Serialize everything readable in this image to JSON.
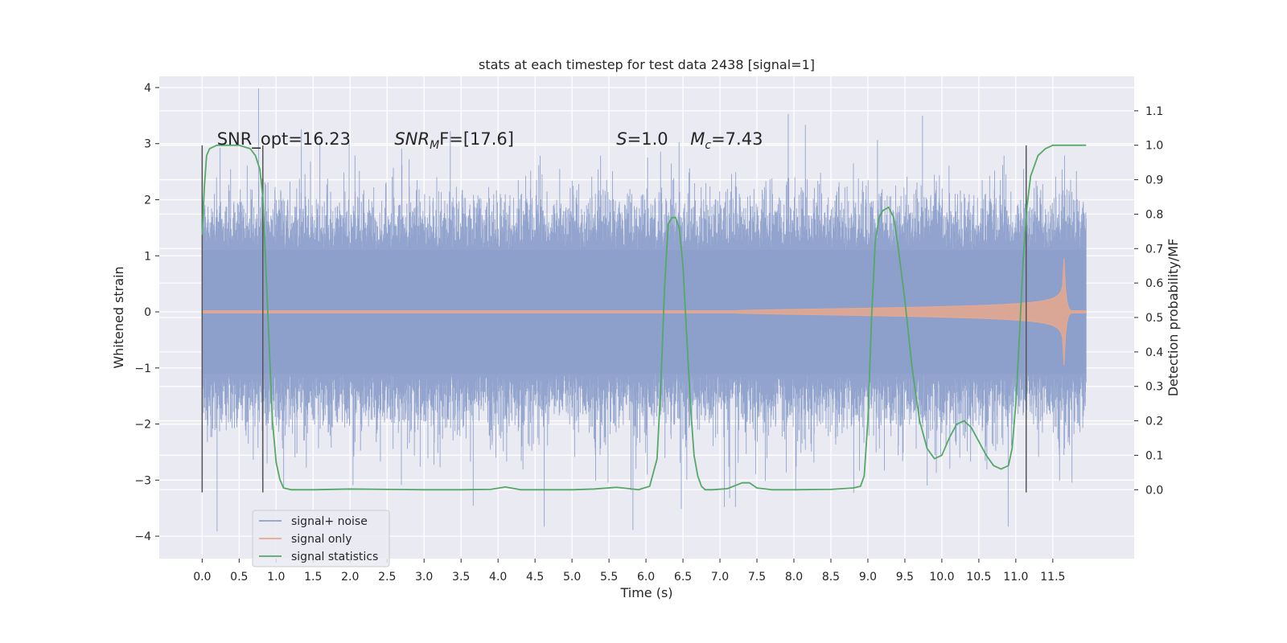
{
  "chart_data": {
    "type": "line",
    "title": "stats at each timestep for test data 2438 [signal=1]",
    "xlabel": "Time (s)",
    "ylabel_left": "Whitened strain",
    "ylabel_right": "Detection probability/MF",
    "xlim": [
      -0.58,
      12.6
    ],
    "ylim_left": [
      -4.4,
      4.2
    ],
    "ylim_right": [
      -0.2,
      1.2
    ],
    "x_ticks": [
      "0.0",
      "0.5",
      "1.0",
      "1.5",
      "2.0",
      "2.5",
      "3.0",
      "3.5",
      "4.0",
      "4.5",
      "5.0",
      "5.5",
      "6.0",
      "6.5",
      "7.0",
      "7.5",
      "8.0",
      "8.5",
      "9.0",
      "9.5",
      "10.0",
      "10.5",
      "11.0",
      "11.5"
    ],
    "y_ticks_left": [
      "4",
      "3",
      "2",
      "1",
      "0",
      "−1",
      "−2",
      "−3",
      "−4"
    ],
    "y_ticks_right": [
      "1.1",
      "1.0",
      "0.9",
      "0.8",
      "0.7",
      "0.6",
      "0.5",
      "0.4",
      "0.3",
      "0.2",
      "0.1",
      "0.0"
    ],
    "grid": true,
    "legend_position": "lower-left",
    "annotations": {
      "snr_opt": "SNR_opt=16.23",
      "snr_mf_base": "SNR",
      "snr_mf_sub": "M",
      "snr_mf_tail": "F=[17.6]",
      "s_label": "S",
      "s_value": "=1.0",
      "mc_base": "M",
      "mc_sub": "c",
      "mc_value": "=7.43"
    },
    "vertical_lines_x": [
      0.0,
      0.82,
      11.14
    ],
    "series": [
      {
        "name": "signal+ noise",
        "color": "#8da0cb",
        "duration": 11.95
      },
      {
        "name": "signal only",
        "color": "#e8a88e",
        "chirp_start": 7.2,
        "chirp_peak": 11.64,
        "peak_amp": 1.5
      },
      {
        "name": "signal statistics",
        "color": "#55a868",
        "x": [
          0.0,
          0.03,
          0.06,
          0.1,
          0.15,
          0.2,
          0.3,
          0.5,
          0.65,
          0.72,
          0.78,
          0.82,
          0.85,
          0.9,
          0.95,
          1.0,
          1.05,
          1.1,
          1.2,
          1.5,
          2.0,
          2.5,
          3.0,
          3.5,
          3.9,
          4.1,
          4.3,
          4.5,
          5.0,
          5.3,
          5.6,
          5.9,
          6.05,
          6.15,
          6.2,
          6.25,
          6.3,
          6.35,
          6.4,
          6.45,
          6.5,
          6.55,
          6.6,
          6.65,
          6.7,
          6.75,
          6.8,
          6.9,
          7.1,
          7.3,
          7.4,
          7.5,
          7.7,
          8.0,
          8.5,
          8.8,
          8.9,
          8.95,
          9.0,
          9.05,
          9.1,
          9.15,
          9.2,
          9.28,
          9.35,
          9.4,
          9.5,
          9.6,
          9.7,
          9.8,
          9.9,
          10.0,
          10.1,
          10.2,
          10.3,
          10.4,
          10.5,
          10.6,
          10.7,
          10.8,
          10.9,
          10.95,
          11.0,
          11.05,
          11.1,
          11.15,
          11.2,
          11.3,
          11.4,
          11.5,
          11.6,
          11.8,
          11.95
        ],
        "values": [
          0.74,
          0.88,
          0.97,
          0.99,
          0.995,
          1.0,
          1.0,
          1.0,
          0.99,
          0.97,
          0.93,
          0.85,
          0.7,
          0.45,
          0.2,
          0.08,
          0.03,
          0.005,
          0.0,
          0.0,
          0.002,
          0.001,
          0.0,
          0.0,
          0.001,
          0.008,
          0.0,
          0.0,
          0.0,
          0.002,
          0.007,
          0.0,
          0.01,
          0.09,
          0.3,
          0.58,
          0.77,
          0.79,
          0.79,
          0.76,
          0.65,
          0.45,
          0.25,
          0.1,
          0.04,
          0.01,
          0.0,
          0.0,
          0.003,
          0.02,
          0.02,
          0.005,
          0.0,
          0.0,
          0.001,
          0.005,
          0.01,
          0.04,
          0.2,
          0.5,
          0.72,
          0.79,
          0.81,
          0.82,
          0.79,
          0.72,
          0.55,
          0.35,
          0.2,
          0.12,
          0.09,
          0.1,
          0.15,
          0.19,
          0.2,
          0.18,
          0.14,
          0.1,
          0.07,
          0.06,
          0.07,
          0.12,
          0.25,
          0.45,
          0.67,
          0.82,
          0.91,
          0.97,
          0.99,
          1.0,
          1.0,
          1.0,
          1.0
        ]
      }
    ]
  }
}
